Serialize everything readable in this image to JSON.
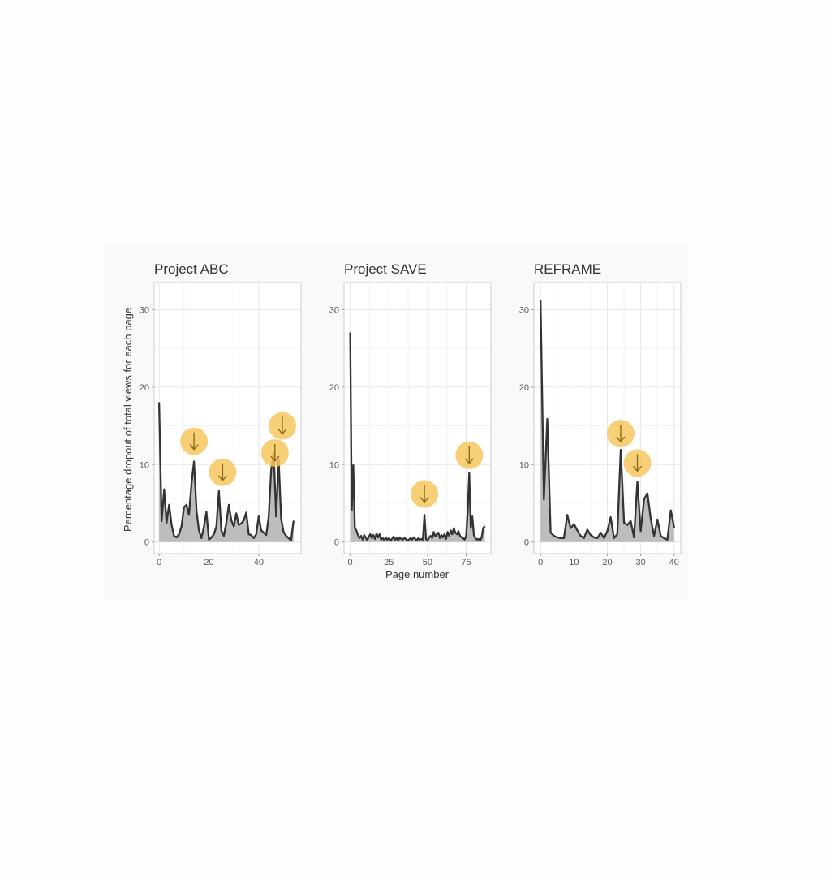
{
  "chart_data": {
    "type": "area",
    "xlabel": "Page number",
    "ylabel": "Percentage dropout of total views for each page",
    "grid": true,
    "colors": {
      "line": "#333333",
      "fill": "#bdbdbd",
      "highlight": "#f6c75e",
      "arrow": "#8a6a1c",
      "panel_border": "#cccccc",
      "grid_major": "#e6e6e6",
      "grid_minor": "#f2f2f2"
    },
    "panels": [
      {
        "title": "Project ABC",
        "xlim": [
          -2,
          57
        ],
        "ylim": [
          -1.5,
          33.5
        ],
        "xticks": [
          0,
          20,
          40
        ],
        "yticks": [
          0,
          10,
          20,
          30
        ],
        "x": [
          0,
          1,
          2,
          3,
          4,
          5,
          6,
          7,
          8,
          9,
          10,
          11,
          12,
          13,
          14,
          15,
          16,
          17,
          18,
          19,
          20,
          21,
          22,
          23,
          24,
          25,
          26,
          27,
          28,
          29,
          30,
          31,
          32,
          33,
          34,
          35,
          36,
          37,
          38,
          39,
          40,
          41,
          42,
          43,
          44,
          45,
          46,
          47,
          48,
          49,
          50,
          51,
          52,
          53,
          54
        ],
        "values": [
          18,
          2.7,
          6.8,
          2.5,
          4.8,
          2.2,
          0.8,
          0.6,
          1.0,
          2.0,
          4.5,
          4.8,
          3.5,
          7.5,
          10.4,
          4.0,
          1.5,
          0.5,
          2.0,
          3.9,
          0.3,
          0.6,
          1.0,
          2.0,
          6.6,
          1.5,
          0.8,
          2.5,
          4.8,
          2.8,
          2.0,
          3.7,
          2.2,
          2.4,
          2.8,
          3.8,
          1.0,
          0.9,
          0.5,
          1.0,
          3.3,
          1.5,
          1.2,
          0.9,
          3.2,
          9.3,
          11.5,
          3.3,
          10.7,
          3.0,
          1.3,
          0.8,
          0.5,
          0.2,
          2.7
        ],
        "callouts": [
          {
            "x": 14,
            "y": 13
          },
          {
            "x": 25.5,
            "y": 9
          },
          {
            "x": 46.5,
            "y": 11.5
          },
          {
            "x": 49.5,
            "y": 15
          }
        ]
      },
      {
        "title": "Project SAVE",
        "xlim": [
          -4,
          91
        ],
        "ylim": [
          -1.5,
          33.5
        ],
        "xticks": [
          0,
          25,
          50,
          75
        ],
        "yticks": [
          0,
          10,
          20,
          30
        ],
        "x": [
          0,
          1,
          2,
          3,
          4,
          5,
          6,
          7,
          8,
          9,
          10,
          11,
          12,
          13,
          14,
          15,
          16,
          17,
          18,
          19,
          20,
          21,
          22,
          23,
          24,
          25,
          26,
          27,
          28,
          29,
          30,
          31,
          32,
          33,
          34,
          35,
          36,
          37,
          38,
          39,
          40,
          41,
          42,
          43,
          44,
          45,
          46,
          47,
          48,
          49,
          50,
          51,
          52,
          53,
          54,
          55,
          56,
          57,
          58,
          59,
          60,
          61,
          62,
          63,
          64,
          65,
          66,
          67,
          68,
          69,
          70,
          71,
          72,
          73,
          74,
          75,
          76,
          77,
          78,
          79,
          80,
          81,
          82,
          83,
          84,
          85,
          86,
          87
        ],
        "values": [
          27,
          4.1,
          9.9,
          1.8,
          1.5,
          0.9,
          0.5,
          0.8,
          0.3,
          0.9,
          0.6,
          0.2,
          0.7,
          1.0,
          0.5,
          0.9,
          0.4,
          1.1,
          0.6,
          1.0,
          0.3,
          0.5,
          0.2,
          0.6,
          0.3,
          0.5,
          0.2,
          0.4,
          0.7,
          0.3,
          0.5,
          0.2,
          0.6,
          0.4,
          0.3,
          0.5,
          0.4,
          0.2,
          0.3,
          0.5,
          0.3,
          0.6,
          0.4,
          0.2,
          0.5,
          0.3,
          0.4,
          0.3,
          3.5,
          0.4,
          0.2,
          0.6,
          0.8,
          0.5,
          1.3,
          0.7,
          1.0,
          1.2,
          0.5,
          0.9,
          0.6,
          1.0,
          0.4,
          1.3,
          0.8,
          1.5,
          1.0,
          1.8,
          1.2,
          1.0,
          1.4,
          0.8,
          0.6,
          0.5,
          0.3,
          0.8,
          4.0,
          8.9,
          1.8,
          3.3,
          0.9,
          0.5,
          0.3,
          0.4,
          0.2,
          0.6,
          1.8,
          2.0
        ],
        "callouts": [
          {
            "x": 48,
            "y": 6.2
          },
          {
            "x": 77,
            "y": 11.2
          }
        ]
      },
      {
        "title": "REFRAME",
        "xlim": [
          -2,
          42
        ],
        "ylim": [
          -1.5,
          33.5
        ],
        "xticks": [
          0,
          10,
          20,
          30,
          40
        ],
        "yticks": [
          0,
          10,
          20,
          30
        ],
        "x": [
          0,
          1,
          2,
          3,
          4,
          5,
          6,
          7,
          8,
          9,
          10,
          11,
          12,
          13,
          14,
          15,
          16,
          17,
          18,
          19,
          20,
          21,
          22,
          23,
          24,
          25,
          26,
          27,
          28,
          29,
          30,
          31,
          32,
          33,
          34,
          35,
          36,
          37,
          38,
          39,
          40
        ],
        "values": [
          31.2,
          5.5,
          15.9,
          1.2,
          0.8,
          0.6,
          0.5,
          0.5,
          3.5,
          1.8,
          2.3,
          1.5,
          0.8,
          0.5,
          1.6,
          0.9,
          0.6,
          0.5,
          1.2,
          0.5,
          1.4,
          3.2,
          0.5,
          1.0,
          11.9,
          2.5,
          2.2,
          2.7,
          0.6,
          7.8,
          1.4,
          5.5,
          6.3,
          3.0,
          0.8,
          2.9,
          0.8,
          0.5,
          0.3,
          4.1,
          1.9
        ],
        "callouts": [
          {
            "x": 24,
            "y": 14
          },
          {
            "x": 29,
            "y": 10.2
          }
        ]
      }
    ]
  }
}
